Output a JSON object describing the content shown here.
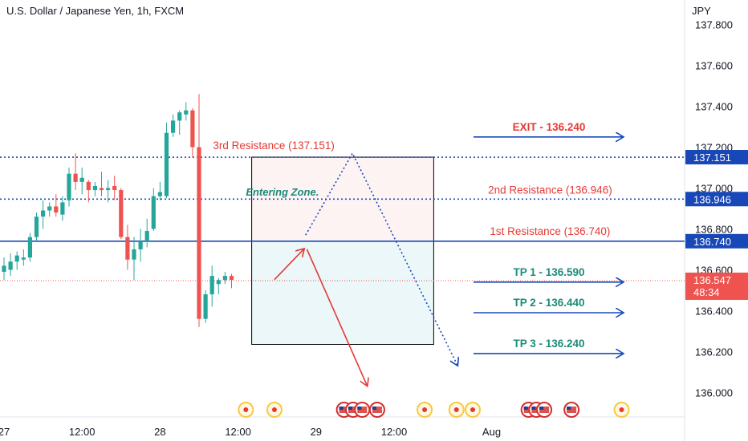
{
  "header": {
    "title": "U.S. Dollar / Japanese Yen, 1h, FXCM",
    "currency": "JPY"
  },
  "chart_data": {
    "type": "candlestick",
    "title": "U.S. Dollar / Japanese Yen, 1h, FXCM",
    "ylabel": "JPY",
    "ylim": [
      135.88,
      137.92
    ],
    "y_ticks": [
      "137.800",
      "137.600",
      "137.400",
      "137.200",
      "137.000",
      "136.800",
      "136.600",
      "136.400",
      "136.200",
      "136.000"
    ],
    "y_tick_values": [
      137.8,
      137.6,
      137.4,
      137.2,
      137.0,
      136.8,
      136.6,
      136.4,
      136.2,
      136.0
    ],
    "x_ticks": [
      "27",
      "12:00",
      "28",
      "12:00",
      "29",
      "12:00",
      "Aug"
    ],
    "x_tick_index": [
      0,
      12,
      24,
      36,
      48,
      60,
      75
    ],
    "colors": {
      "up": "#26a69a",
      "down": "#ef5350",
      "blue": "#1848b8",
      "red": "#e53935",
      "green": "#1b8a78"
    },
    "candles": [
      {
        "o": 136.59,
        "h": 136.66,
        "l": 136.55,
        "c": 136.62
      },
      {
        "o": 136.6,
        "h": 136.68,
        "l": 136.57,
        "c": 136.64
      },
      {
        "o": 136.64,
        "h": 136.69,
        "l": 136.6,
        "c": 136.67
      },
      {
        "o": 136.65,
        "h": 136.7,
        "l": 136.62,
        "c": 136.66
      },
      {
        "o": 136.66,
        "h": 136.78,
        "l": 136.64,
        "c": 136.76
      },
      {
        "o": 136.76,
        "h": 136.88,
        "l": 136.74,
        "c": 136.86
      },
      {
        "o": 136.86,
        "h": 136.94,
        "l": 136.8,
        "c": 136.89
      },
      {
        "o": 136.89,
        "h": 136.93,
        "l": 136.86,
        "c": 136.91
      },
      {
        "o": 136.91,
        "h": 136.97,
        "l": 136.86,
        "c": 136.88
      },
      {
        "o": 136.87,
        "h": 136.96,
        "l": 136.84,
        "c": 136.93
      },
      {
        "o": 136.94,
        "h": 137.1,
        "l": 136.91,
        "c": 137.07
      },
      {
        "o": 137.07,
        "h": 137.17,
        "l": 136.99,
        "c": 137.03
      },
      {
        "o": 137.03,
        "h": 137.1,
        "l": 136.97,
        "c": 137.05
      },
      {
        "o": 137.03,
        "h": 137.04,
        "l": 136.93,
        "c": 136.99
      },
      {
        "o": 136.99,
        "h": 137.03,
        "l": 136.96,
        "c": 137.01
      },
      {
        "o": 137.0,
        "h": 137.08,
        "l": 136.96,
        "c": 136.99
      },
      {
        "o": 136.99,
        "h": 137.04,
        "l": 136.93,
        "c": 137.0
      },
      {
        "o": 137.01,
        "h": 137.06,
        "l": 136.94,
        "c": 136.99
      },
      {
        "o": 136.99,
        "h": 137.0,
        "l": 136.75,
        "c": 136.76
      },
      {
        "o": 136.76,
        "h": 136.82,
        "l": 136.6,
        "c": 136.65
      },
      {
        "o": 136.65,
        "h": 136.76,
        "l": 136.55,
        "c": 136.7
      },
      {
        "o": 136.7,
        "h": 136.8,
        "l": 136.64,
        "c": 136.74
      },
      {
        "o": 136.74,
        "h": 136.85,
        "l": 136.71,
        "c": 136.79
      },
      {
        "o": 136.8,
        "h": 137.0,
        "l": 136.79,
        "c": 136.96
      },
      {
        "o": 136.96,
        "h": 137.03,
        "l": 136.94,
        "c": 136.98
      },
      {
        "o": 136.96,
        "h": 137.32,
        "l": 136.95,
        "c": 137.27
      },
      {
        "o": 137.27,
        "h": 137.36,
        "l": 137.25,
        "c": 137.33
      },
      {
        "o": 137.33,
        "h": 137.38,
        "l": 137.26,
        "c": 137.37
      },
      {
        "o": 137.36,
        "h": 137.42,
        "l": 137.33,
        "c": 137.38
      },
      {
        "o": 137.38,
        "h": 137.39,
        "l": 137.15,
        "c": 137.2
      },
      {
        "o": 137.2,
        "h": 137.46,
        "l": 136.32,
        "c": 136.36
      },
      {
        "o": 136.36,
        "h": 136.5,
        "l": 136.34,
        "c": 136.48
      },
      {
        "o": 136.48,
        "h": 136.62,
        "l": 136.42,
        "c": 136.57
      },
      {
        "o": 136.53,
        "h": 136.56,
        "l": 136.48,
        "c": 136.55
      },
      {
        "o": 136.55,
        "h": 136.59,
        "l": 136.53,
        "c": 136.57
      },
      {
        "o": 136.57,
        "h": 136.58,
        "l": 136.51,
        "c": 136.55
      }
    ],
    "zone": {
      "label": "Entering Zone.",
      "top": 137.151,
      "mid": 136.74,
      "bottom": 136.235,
      "start_index": 38.1,
      "end_index": 66.1
    },
    "levels": [
      {
        "name": "3rd Resistance",
        "label": "3rd Resistance (137.151)",
        "value": 137.151,
        "tag": "137.151",
        "style": "dotted"
      },
      {
        "name": "2nd Resistance",
        "label": "2nd Resistance (136.946)",
        "value": 136.946,
        "tag": "136.946",
        "style": "dotted"
      },
      {
        "name": "1st Resistance",
        "label": "1st Resistance (136.740)",
        "value": 136.74,
        "tag": "136.740",
        "style": "solid"
      }
    ],
    "current_price": {
      "value": 136.547,
      "label": "136.547",
      "countdown": "48:34"
    },
    "targets": [
      {
        "label": "EXIT - 136.240",
        "kind": "exit",
        "y_ref": 137.25
      },
      {
        "label": "TP 1 - 136.590",
        "kind": "tp",
        "y_ref": 136.54
      },
      {
        "label": "TP 2 - 136.440",
        "kind": "tp",
        "y_ref": 136.39
      },
      {
        "label": "TP 3 - 136.240",
        "kind": "tp",
        "y_ref": 136.19
      }
    ],
    "event_icons": [
      {
        "i": 37.2,
        "kind": "dot"
      },
      {
        "i": 41.6,
        "kind": "dot"
      },
      {
        "i": 52.3,
        "kind": "flag"
      },
      {
        "i": 53.7,
        "kind": "flag"
      },
      {
        "i": 55.1,
        "kind": "flag"
      },
      {
        "i": 57.4,
        "kind": "flag"
      },
      {
        "i": 64.7,
        "kind": "dot"
      },
      {
        "i": 69.6,
        "kind": "dot"
      },
      {
        "i": 72.1,
        "kind": "dot"
      },
      {
        "i": 80.7,
        "kind": "flag"
      },
      {
        "i": 81.9,
        "kind": "flag"
      },
      {
        "i": 83.1,
        "kind": "flag"
      },
      {
        "i": 87.3,
        "kind": "flag"
      },
      {
        "i": 95.0,
        "kind": "dot"
      }
    ]
  }
}
